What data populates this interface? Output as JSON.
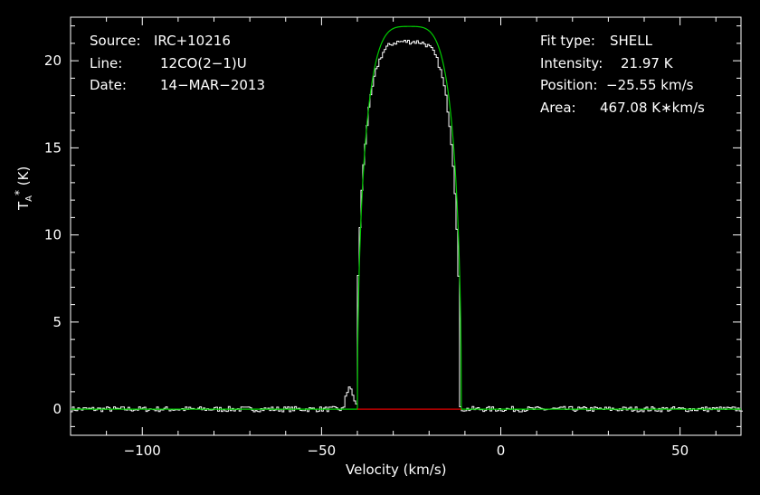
{
  "header_left": {
    "source_label": "Source:",
    "source_value": "IRC+10216",
    "line_label": "Line:",
    "line_value": "12CO(2−1)U",
    "date_label": "Date:",
    "date_value": "14−MAR−2013"
  },
  "header_right": {
    "fit_label": "Fit type:",
    "fit_value": "SHELL",
    "intensity_label": "Intensity:",
    "intensity_value": "21.97 K",
    "position_label": "Position:",
    "position_value": "−25.55 km/s",
    "area_label": "Area:",
    "area_value": "467.08 K∗km/s"
  },
  "chart_data": {
    "type": "line",
    "xlabel": "Velocity (km/s)",
    "ylabel_main": "T",
    "ylabel_sub": "A",
    "ylabel_sup": "*",
    "ylabel_unit": " (K)",
    "xlim": [
      -120,
      67
    ],
    "ylim": [
      -1.5,
      22.5
    ],
    "xticks": [
      -100,
      -50,
      0,
      50
    ],
    "xtick_labels": [
      "−100",
      "−50",
      "0",
      "50"
    ],
    "yticks": [
      0,
      5,
      10,
      15,
      20
    ],
    "ytick_labels": [
      "0",
      "5",
      "10",
      "15",
      "20"
    ],
    "grid": false,
    "series": [
      {
        "color": "#ffffff",
        "style": "histogram",
        "noise_amplitude": 0.15,
        "profile": {
          "v0": -25.55,
          "peak": 21.1,
          "v_low": -40.5,
          "v_high": -11.5,
          "shoulder_v": -42.5,
          "shoulder_t": 1.3
        }
      },
      {
        "color": "#00cc00",
        "style": "fit",
        "fit_type": "SHELL",
        "profile": {
          "v0": -25.55,
          "peak": 21.97,
          "v_low": -40.0,
          "v_high": -11.0
        }
      },
      {
        "color": "#e00000",
        "style": "baseline",
        "x": [
          -40.0,
          -11.0
        ],
        "y": [
          0,
          0
        ]
      }
    ]
  }
}
